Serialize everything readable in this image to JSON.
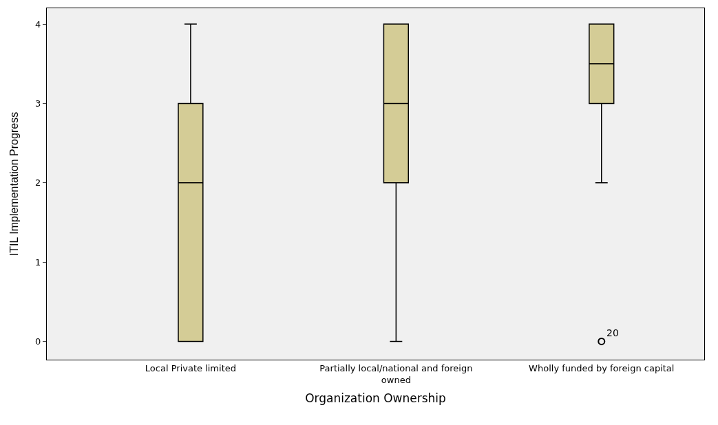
{
  "chart_data": {
    "type": "box",
    "xlabel": "Organization Ownership",
    "ylabel": "ITIL Implementation Progress",
    "categories": [
      "Local Private limited",
      "Partially local/national and foreign owned",
      "Wholly funded by foreign capital"
    ],
    "boxes": [
      {
        "low": 0,
        "q1": 0,
        "median": 2,
        "q3": 3,
        "high": 4
      },
      {
        "low": 0,
        "q1": 2,
        "median": 3,
        "q3": 4,
        "high": 4
      },
      {
        "low": 2,
        "q1": 3,
        "median": 3.5,
        "q3": 4,
        "high": 4,
        "outliers": [
          0
        ]
      }
    ],
    "color": "#d4cc96",
    "ylim": [
      -0.23,
      4.2
    ],
    "yticks": [
      0,
      1,
      2,
      3,
      4
    ],
    "grid": false,
    "annotations": [
      "20"
    ]
  }
}
